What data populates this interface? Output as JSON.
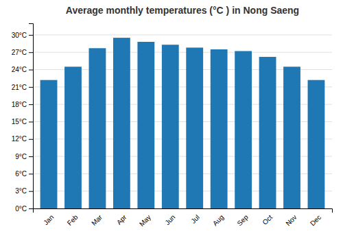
{
  "chart_data": {
    "type": "bar",
    "title": "Average monthly temperatures (°C ) in Nong Saeng",
    "categories": [
      "Jan",
      "Feb",
      "Mar",
      "Apr",
      "May",
      "Jun",
      "Jul",
      "Aug",
      "Sep",
      "Oct",
      "Nov",
      "Dec"
    ],
    "values": [
      22.2,
      24.5,
      27.7,
      29.5,
      28.8,
      28.3,
      27.8,
      27.5,
      27.2,
      26.2,
      24.5,
      22.2
    ],
    "ylim": [
      0,
      32
    ],
    "yticks": [
      {
        "value": 0,
        "label": "0°C"
      },
      {
        "value": 3,
        "label": "3°C"
      },
      {
        "value": 6,
        "label": "6°C"
      },
      {
        "value": 9,
        "label": "9°C"
      },
      {
        "value": 12,
        "label": "12°C"
      },
      {
        "value": 15,
        "label": "15°C"
      },
      {
        "value": 18,
        "label": "18°C"
      },
      {
        "value": 21,
        "label": "21°C"
      },
      {
        "value": 24,
        "label": "24°C"
      },
      {
        "value": 27,
        "label": "27°C"
      },
      {
        "value": 30,
        "label": "30°C"
      }
    ],
    "grid": true
  }
}
